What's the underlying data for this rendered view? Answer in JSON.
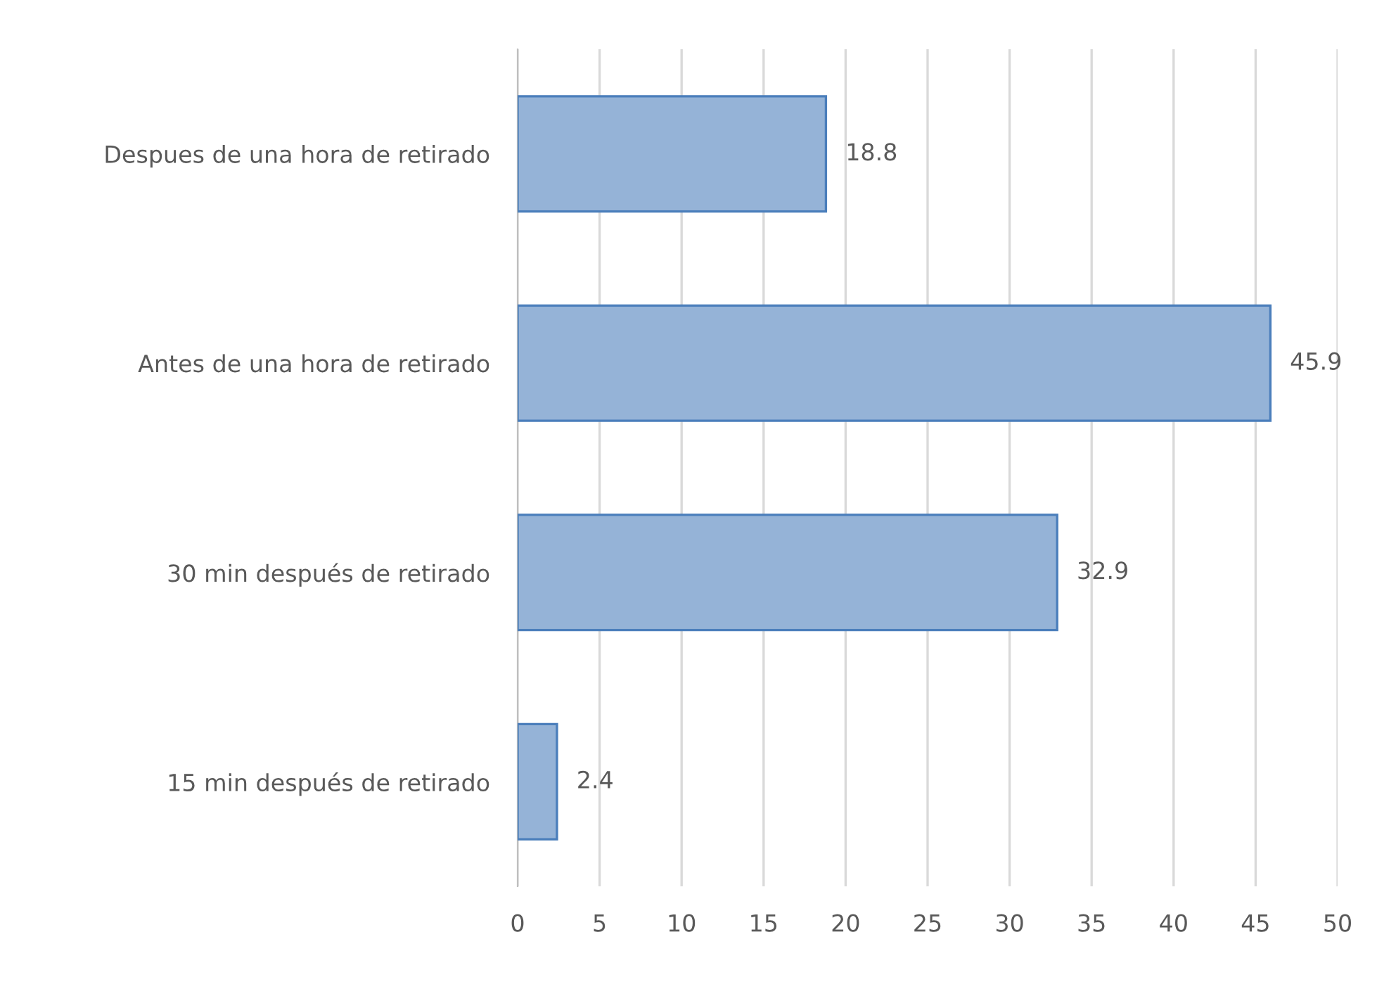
{
  "chart_data": {
    "type": "bar",
    "orientation": "horizontal",
    "categories": [
      "Despues de una hora de retirado",
      "Antes de una hora de retirado",
      "30 min después de retirado",
      "15 min después de retirado"
    ],
    "values": [
      18.8,
      45.9,
      32.9,
      2.4
    ],
    "color": "#95b3d7",
    "xlim": [
      0,
      50
    ],
    "xticks": [
      0,
      5,
      10,
      15,
      20,
      25,
      30,
      35,
      40,
      45,
      50
    ],
    "grid": "x",
    "data_labels": true
  }
}
